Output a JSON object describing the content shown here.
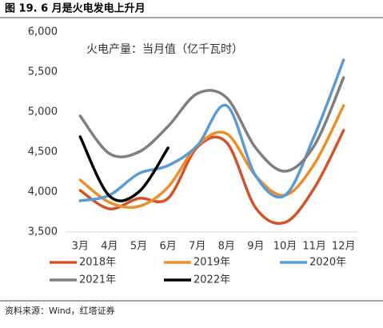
{
  "chart_data": {
    "type": "line",
    "title": "图 19. 6 月是火电发电上升月",
    "subtitle": "火电产量：当月值（亿千瓦时）",
    "source": "资料来源：Wind，红塔证券",
    "categories": [
      "3月",
      "4月",
      "5月",
      "6月",
      "7月",
      "8月",
      "9月",
      "10月",
      "11月",
      "12月"
    ],
    "ylim": [
      3500,
      6000
    ],
    "yticks": [
      {
        "value": 3500,
        "label": "3,500"
      },
      {
        "value": 4000,
        "label": "4,000"
      },
      {
        "value": 4500,
        "label": "4,500"
      },
      {
        "value": 5000,
        "label": "5,000"
      },
      {
        "value": 5500,
        "label": "5,500"
      },
      {
        "value": 6000,
        "label": "6,000"
      }
    ],
    "series": [
      {
        "name": "2018年",
        "color": "#d2532a",
        "values": [
          4020,
          3790,
          3920,
          3920,
          4560,
          4620,
          3800,
          3620,
          4050,
          4770
        ]
      },
      {
        "name": "2019年",
        "color": "#ea8f2a",
        "values": [
          4150,
          3870,
          3820,
          4060,
          4580,
          4730,
          4200,
          3960,
          4350,
          5080
        ]
      },
      {
        "name": "2020年",
        "color": "#5b9bd5",
        "values": [
          3890,
          3960,
          4230,
          4330,
          4580,
          5080,
          4200,
          3960,
          4700,
          5650
        ]
      },
      {
        "name": "2021年",
        "color": "#7f7f7f",
        "values": [
          4950,
          4480,
          4500,
          4820,
          5230,
          5180,
          4550,
          4260,
          4580,
          5430
        ]
      },
      {
        "name": "2022年",
        "color": "#000000",
        "values": [
          4690,
          3950,
          4000,
          4550,
          null,
          null,
          null,
          null,
          null,
          null
        ]
      }
    ]
  }
}
